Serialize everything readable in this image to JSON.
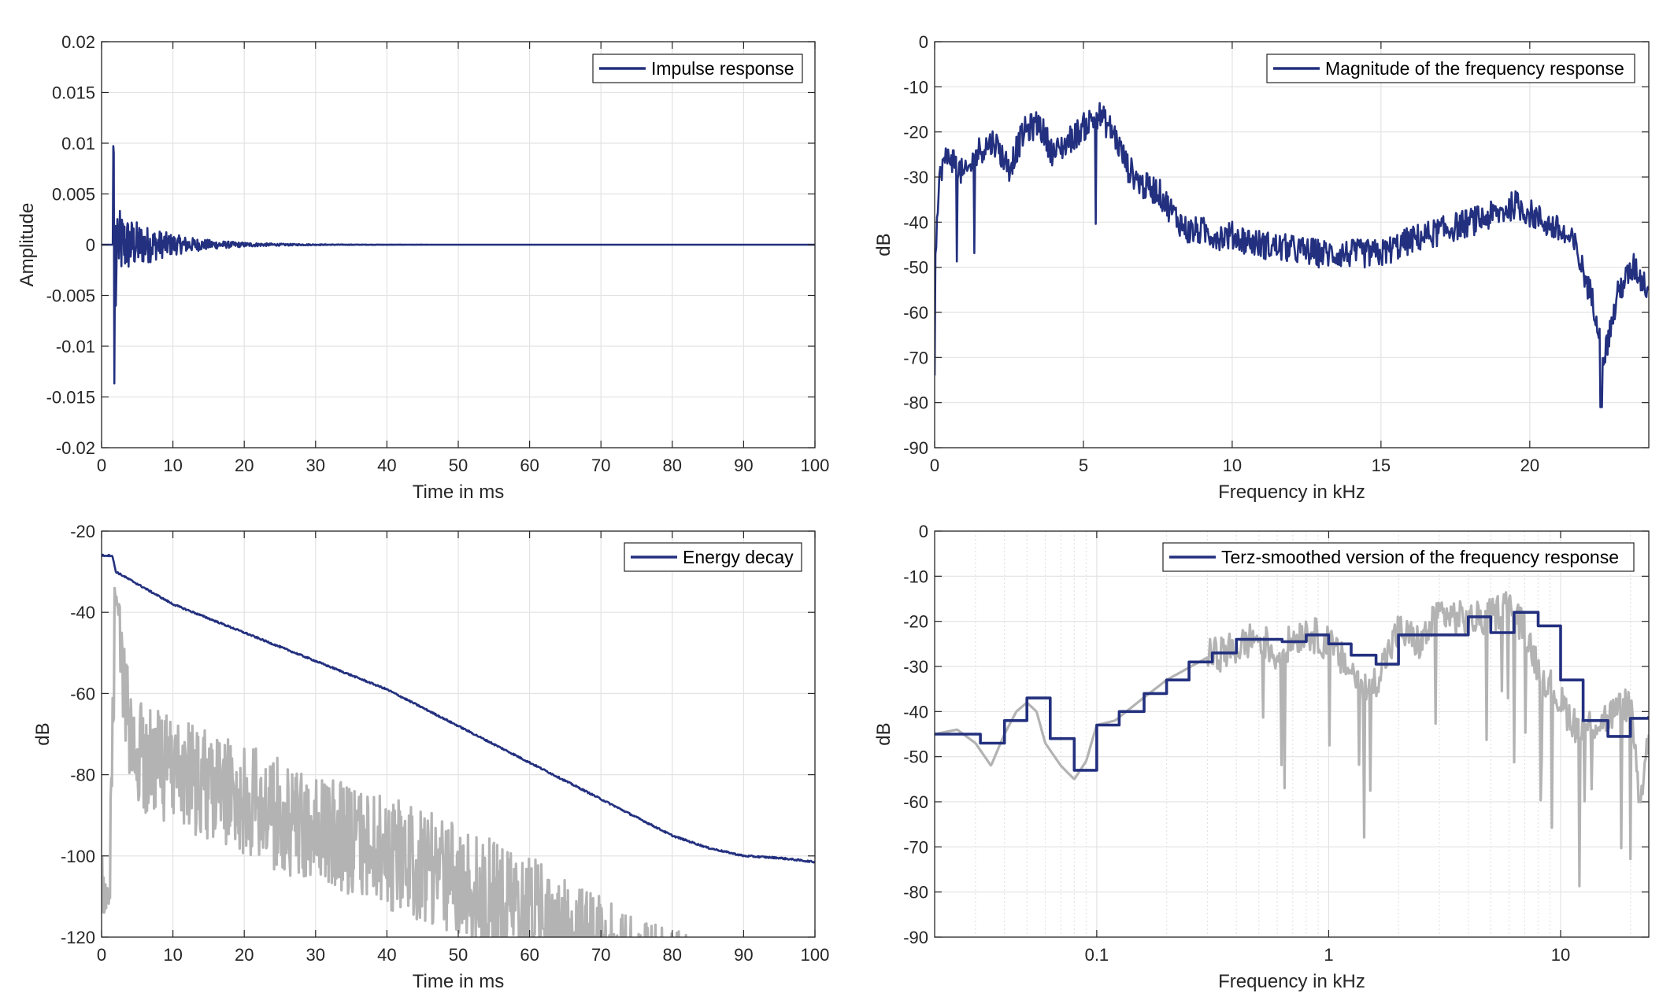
{
  "colors": {
    "series": "#23307f",
    "gray": "#b3b3b3",
    "grid": "#e3e3e3",
    "axis": "#262626"
  },
  "chart_data": [
    {
      "type": "line",
      "legend": "Impulse response",
      "legend_position": "top-right",
      "xlabel": "Time in ms",
      "ylabel": "Amplitude",
      "xlim": [
        0,
        100
      ],
      "ylim": [
        -0.02,
        0.02
      ],
      "xticks": [
        0,
        10,
        20,
        30,
        40,
        50,
        60,
        70,
        80,
        90,
        100
      ],
      "yticks": [
        0.02,
        0.015,
        0.01,
        0.005,
        0,
        -0.005,
        -0.01,
        -0.015,
        -0.02
      ],
      "grid": true,
      "series": [
        {
          "name": "Impulse response",
          "x": [
            0,
            1.5,
            1.7,
            1.8,
            1.9,
            2.0,
            2.2,
            2.5,
            3.0,
            3.5,
            4.0,
            5.0,
            6.0,
            7.0,
            8.0,
            9.0,
            10,
            12,
            14,
            16,
            18,
            20,
            25,
            30,
            35,
            40,
            50,
            60,
            70,
            80,
            90,
            100
          ],
          "y": [
            0,
            0,
            0.0136,
            -0.0182,
            0.005,
            -0.006,
            0.0028,
            -0.003,
            0.004,
            -0.0025,
            0.0022,
            -0.0018,
            0.0015,
            -0.0013,
            0.0012,
            -0.001,
            0.0008,
            -0.0007,
            0.0006,
            -0.0005,
            0.0004,
            -0.0003,
            0.0002,
            -0.00015,
            0.0001,
            0,
            0,
            0,
            0,
            0,
            0,
            0
          ]
        }
      ]
    },
    {
      "type": "line",
      "legend": "Magnitude of the frequency response",
      "legend_position": "top-right",
      "xlabel": "Frequency in kHz",
      "ylabel": "dB",
      "xlim": [
        0,
        24
      ],
      "ylim": [
        -90,
        0
      ],
      "xticks": [
        0,
        5,
        10,
        15,
        20
      ],
      "yticks": [
        0,
        -10,
        -20,
        -30,
        -40,
        -50,
        -60,
        -70,
        -80,
        -90
      ],
      "grid": true,
      "series": [
        {
          "name": "Magnitude of the frequency response",
          "x": [
            0,
            0.2,
            0.5,
            1,
            1.5,
            2,
            2.5,
            3,
            3.5,
            4,
            4.5,
            5,
            5.5,
            6,
            6.5,
            7,
            7.5,
            8,
            8.5,
            9,
            9.5,
            10,
            11,
            12,
            13,
            14,
            15,
            16,
            17,
            18,
            19,
            19.5,
            20,
            20.5,
            21,
            21.5,
            22,
            22.3,
            22.5,
            23,
            23.5,
            24
          ],
          "y": [
            -48,
            -28,
            -25,
            -30,
            -24,
            -22,
            -28,
            -20,
            -18,
            -25,
            -22,
            -19,
            -16,
            -20,
            -28,
            -32,
            -33,
            -38,
            -42,
            -42,
            -43,
            -43,
            -45,
            -46,
            -47,
            -47,
            -47,
            -44,
            -42,
            -40,
            -38,
            -36,
            -38,
            -40,
            -42,
            -45,
            -55,
            -62,
            -70,
            -55,
            -50,
            -55
          ]
        }
      ]
    },
    {
      "type": "line",
      "legend": "Energy decay",
      "legend_position": "top-right",
      "xlabel": "Time in ms",
      "ylabel": "dB",
      "xlim": [
        0,
        100
      ],
      "ylim": [
        -120,
        -20
      ],
      "xticks": [
        0,
        10,
        20,
        30,
        40,
        50,
        60,
        70,
        80,
        90,
        100
      ],
      "yticks": [
        -20,
        -40,
        -60,
        -80,
        -100,
        -120
      ],
      "grid": true,
      "series": [
        {
          "name": "Energy decay",
          "x": [
            0,
            1.5,
            2,
            5,
            10,
            20,
            30,
            40,
            50,
            60,
            70,
            80,
            85,
            90,
            95,
            100
          ],
          "y": [
            -26,
            -26,
            -30,
            -33,
            -38,
            -45,
            -52,
            -59,
            -68,
            -77,
            -86,
            -95,
            -98,
            -100,
            -100.5,
            -101.5
          ]
        },
        {
          "name": "",
          "x": [
            0,
            1,
            1.8,
            5,
            10,
            20,
            30,
            40,
            50,
            60,
            70,
            75,
            80,
            85
          ],
          "y": [
            -100,
            -98,
            -36,
            -62,
            -65,
            -72,
            -80,
            -85,
            -92,
            -100,
            -110,
            -115,
            -118,
            -120
          ]
        }
      ]
    },
    {
      "type": "line",
      "legend": "Terz-smoothed version of the frequency response",
      "legend_position": "top-right",
      "xlabel": "Frequency in kHz",
      "ylabel": "dB",
      "xscale": "log",
      "xlim": [
        0.02,
        24
      ],
      "ylim": [
        -90,
        0
      ],
      "xticks": [
        0.1,
        1,
        10
      ],
      "yticks": [
        0,
        -10,
        -20,
        -30,
        -40,
        -50,
        -60,
        -70,
        -80,
        -90
      ],
      "grid": true,
      "series": [
        {
          "name": "Terz-smoothed version of the frequency response",
          "x": [
            0.02,
            0.025,
            0.0315,
            0.04,
            0.05,
            0.063,
            0.08,
            0.1,
            0.125,
            0.16,
            0.2,
            0.25,
            0.315,
            0.4,
            0.5,
            0.63,
            0.8,
            1.0,
            1.25,
            1.6,
            2.0,
            2.5,
            3.15,
            4.0,
            5.0,
            6.3,
            8.0,
            10,
            12.5,
            16,
            20,
            24
          ],
          "y": [
            -45,
            -45,
            -47,
            -42,
            -37,
            -46,
            -53,
            -43,
            -40,
            -36,
            -33,
            -29,
            -27,
            -24,
            -24,
            -24.5,
            -23,
            -25,
            -27.5,
            -29.5,
            -23,
            -23,
            -23,
            -19,
            -22.5,
            -18,
            -21,
            -33,
            -42,
            -45.5,
            -41.5,
            -41
          ]
        },
        {
          "name": "",
          "x": [
            0.02,
            0.025,
            0.03,
            0.035,
            0.04,
            0.045,
            0.05,
            0.055,
            0.06,
            0.07,
            0.08,
            0.09,
            0.1,
            0.12,
            0.15,
            0.2,
            0.3,
            0.4,
            0.5,
            0.6,
            0.7,
            0.8,
            1.0,
            1.2,
            1.5,
            2,
            2.5,
            3,
            4,
            5,
            6,
            7,
            8,
            10,
            12,
            15,
            20,
            22,
            24
          ],
          "y": [
            -45,
            -44,
            -47,
            -52,
            -45,
            -40,
            -38,
            -40,
            -47,
            -52,
            -55,
            -51,
            -43,
            -42,
            -38,
            -33,
            -28,
            -26,
            -23,
            -28,
            -24,
            -22,
            -25,
            -30,
            -36,
            -22,
            -25,
            -18,
            -20,
            -19,
            -16,
            -22,
            -30,
            -38,
            -44,
            -42,
            -38,
            -60,
            -45
          ]
        }
      ]
    }
  ]
}
